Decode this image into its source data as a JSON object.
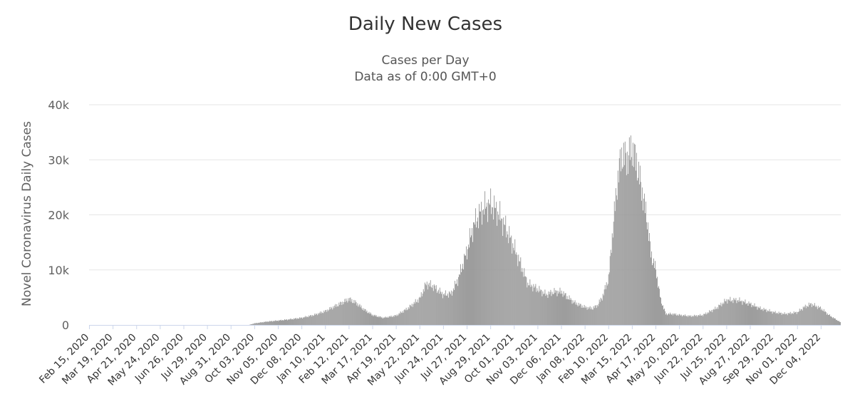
{
  "chart_data": {
    "type": "bar",
    "title": "Daily New Cases",
    "subtitle_lines": [
      "Cases per Day",
      "Data as of 0:00 GMT+0"
    ],
    "ylabel": "Novel Coronavirus Daily Cases",
    "xlabel": "",
    "ylim": [
      0,
      40000
    ],
    "y_ticks": [
      0,
      10000,
      20000,
      30000,
      40000
    ],
    "y_tick_labels": [
      "0",
      "10k",
      "20k",
      "30k",
      "40k"
    ],
    "x_range": [
      "2020-02-15",
      "2022-12-31"
    ],
    "x_tick_labels": [
      "Feb 15, 2020",
      "Mar 19, 2020",
      "Apr 21, 2020",
      "May 24, 2020",
      "Jun 26, 2020",
      "Jul 29, 2020",
      "Aug 31, 2020",
      "Oct 03, 2020",
      "Nov 05, 2020",
      "Dec 08, 2020",
      "Jan 10, 2021",
      "Feb 12, 2021",
      "Mar 17, 2021",
      "Apr 19, 2021",
      "May 22, 2021",
      "Jun 24, 2021",
      "Jul 27, 2021",
      "Aug 29, 2021",
      "Oct 01, 2021",
      "Nov 03, 2021",
      "Dec 06, 2021",
      "Jan 08, 2022",
      "Feb 10, 2022",
      "Mar 15, 2022",
      "Apr 17, 2022",
      "May 20, 2022",
      "Jun 22, 2022",
      "Jul 25, 2022",
      "Aug 27, 2022",
      "Sep 29, 2022",
      "Nov 01, 2022",
      "Dec 04, 2022"
    ],
    "grid": true,
    "legend": "none",
    "bar_color": "#999999",
    "series": [
      {
        "x": [
          "2020-02-15",
          "2020-05-01",
          "2020-08-01",
          "2020-09-25",
          "2020-10-03",
          "2020-10-20",
          "2020-11-05",
          "2020-11-20",
          "2020-12-08",
          "2020-12-25",
          "2021-01-10",
          "2021-01-25",
          "2021-02-05",
          "2021-02-12",
          "2021-02-22",
          "2021-03-05",
          "2021-03-17",
          "2021-04-01",
          "2021-04-19",
          "2021-05-05",
          "2021-05-22",
          "2021-05-31",
          "2021-06-10",
          "2021-06-24",
          "2021-07-05",
          "2021-07-15",
          "2021-07-27",
          "2021-08-05",
          "2021-08-15",
          "2021-08-22",
          "2021-08-29",
          "2021-09-08",
          "2021-09-18",
          "2021-10-01",
          "2021-10-10",
          "2021-10-20",
          "2021-11-03",
          "2021-11-15",
          "2021-11-25",
          "2021-12-06",
          "2021-12-15",
          "2021-12-25",
          "2022-01-08",
          "2022-01-18",
          "2022-01-25",
          "2022-02-01",
          "2022-02-10",
          "2022-02-17",
          "2022-02-24",
          "2022-03-01",
          "2022-03-07",
          "2022-03-15",
          "2022-03-22",
          "2022-03-29",
          "2022-04-05",
          "2022-04-10",
          "2022-04-17",
          "2022-04-24",
          "2022-05-01",
          "2022-05-10",
          "2022-05-20",
          "2022-06-05",
          "2022-06-22",
          "2022-07-10",
          "2022-07-25",
          "2022-08-10",
          "2022-08-27",
          "2022-09-10",
          "2022-09-29",
          "2022-10-15",
          "2022-11-01",
          "2022-11-10",
          "2022-11-20",
          "2022-12-04",
          "2022-12-15",
          "2022-12-31"
        ],
        "values": [
          0,
          0,
          0,
          0,
          300,
          600,
          800,
          1000,
          1300,
          1800,
          2500,
          3500,
          4200,
          4700,
          4000,
          2800,
          1800,
          1300,
          1700,
          3000,
          4800,
          7500,
          7000,
          5500,
          5700,
          8500,
          13500,
          18000,
          20500,
          21500,
          22000,
          20500,
          18000,
          14000,
          11000,
          7500,
          6500,
          5500,
          6000,
          6000,
          5000,
          4000,
          3200,
          3000,
          3500,
          5000,
          8500,
          19000,
          28000,
          31000,
          30000,
          32000,
          29000,
          24000,
          19000,
          13000,
          10000,
          4500,
          2000,
          2000,
          1800,
          1600,
          1800,
          3000,
          4500,
          4500,
          3800,
          3000,
          2300,
          2000,
          2300,
          3200,
          3800,
          3000,
          1800,
          500
        ]
      }
    ]
  }
}
